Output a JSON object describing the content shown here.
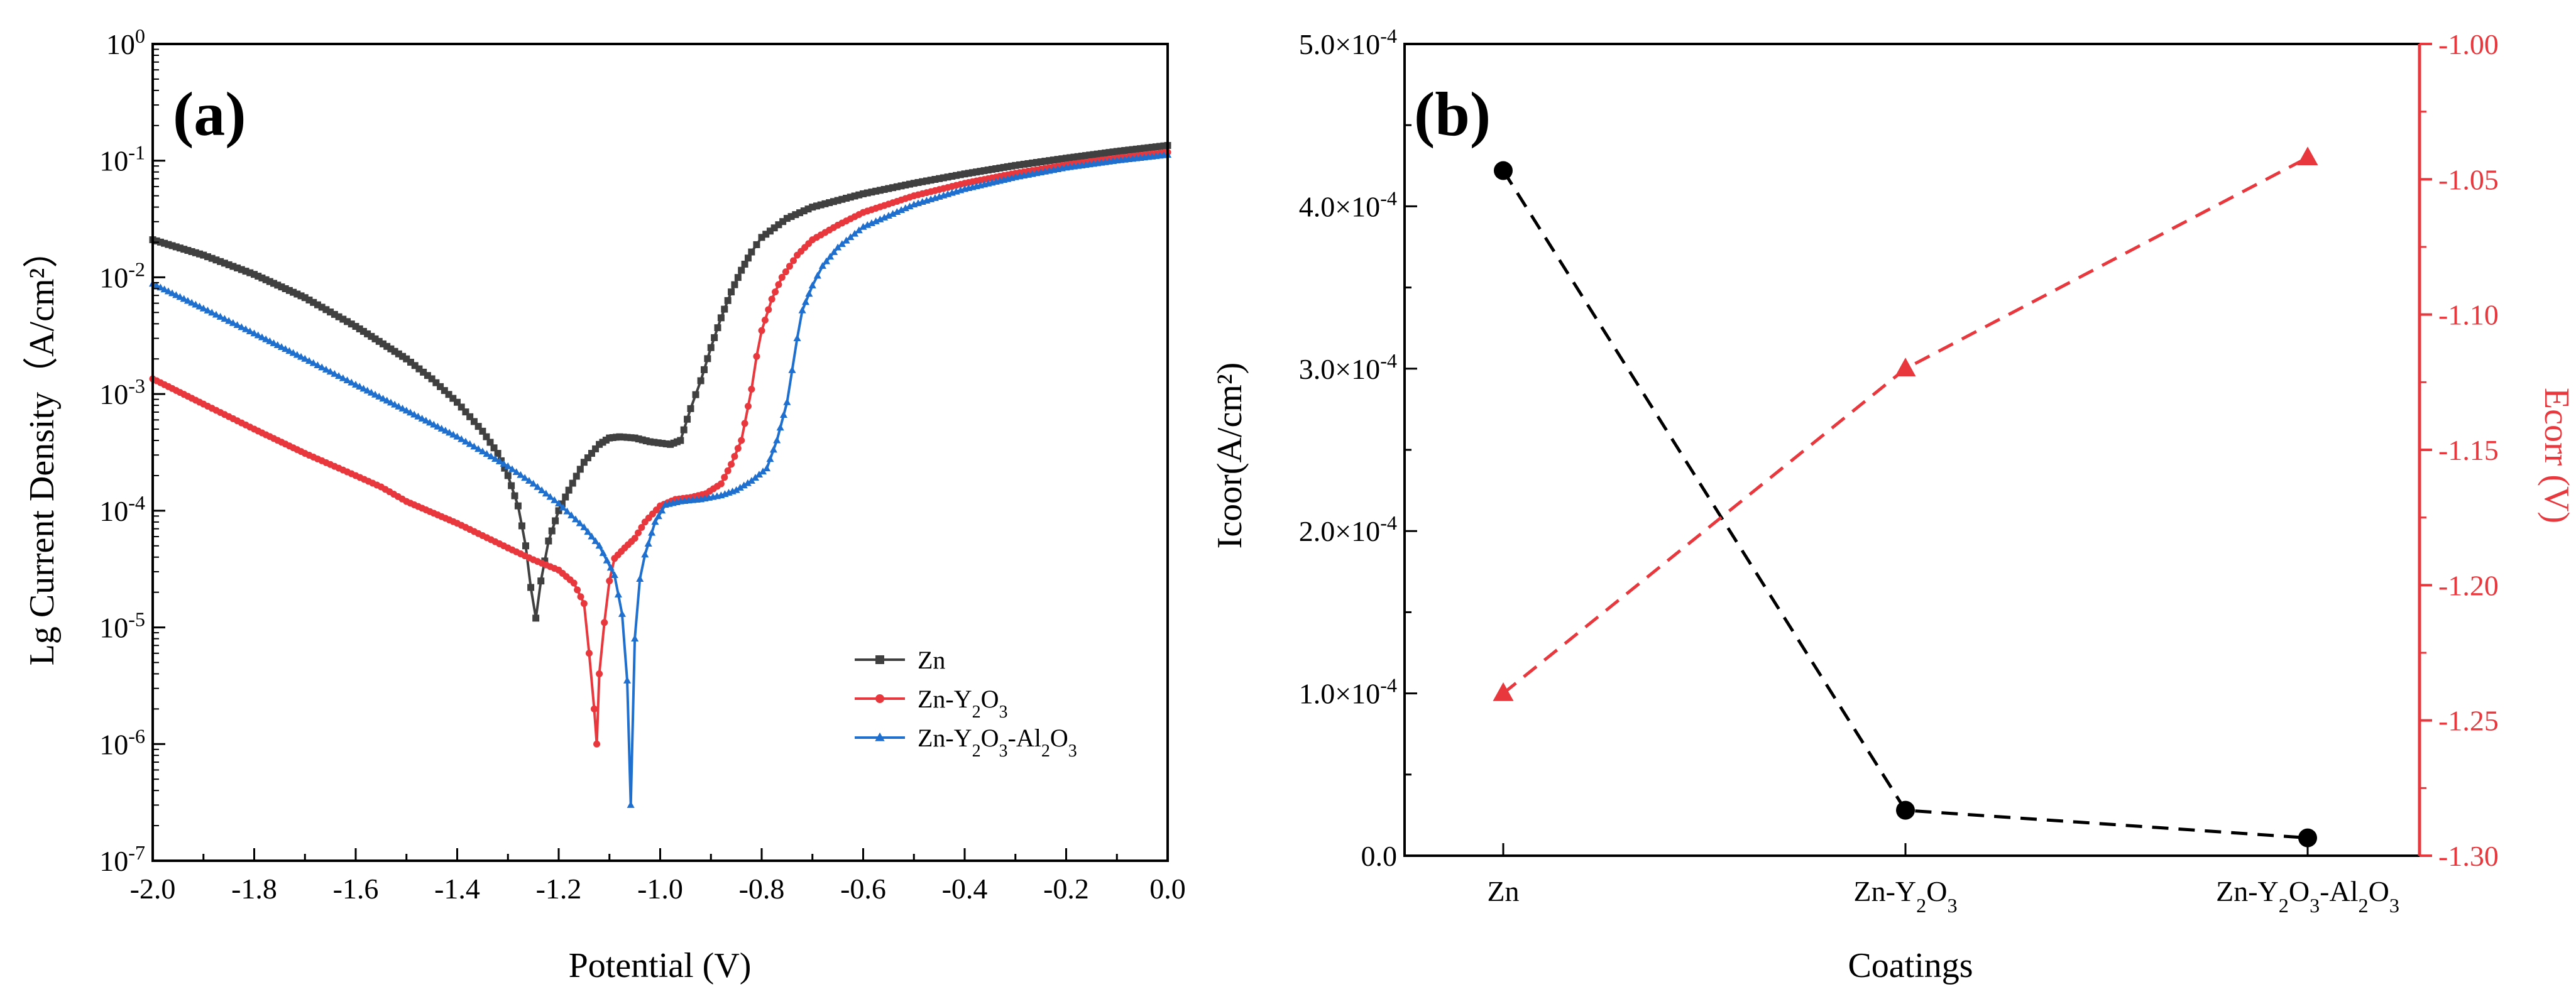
{
  "chart_data": [
    {
      "panel": "(a)",
      "type": "line",
      "xlabel": "Potential (V)",
      "ylabel": "Lg Current Density（A/cm²）",
      "yscale": "log",
      "xlim": [
        -2.0,
        0.0
      ],
      "ylim_exponents": [
        -7,
        0
      ],
      "x_ticks": [
        "-2.0",
        "-1.8",
        "-1.6",
        "-1.4",
        "-1.2",
        "-1.0",
        "-0.8",
        "-0.6",
        "-0.4",
        "-0.2",
        "0.0"
      ],
      "x_tick_values": [
        -2.0,
        -1.8,
        -1.6,
        -1.4,
        -1.2,
        -1.0,
        -0.8,
        -0.6,
        -0.4,
        -0.2,
        0.0
      ],
      "y_ticks": [
        "-7",
        "-6",
        "-5",
        "-4",
        "-3",
        "-2",
        "-1",
        "0"
      ],
      "y_tick_base": "10",
      "legend": {
        "position": "bottom-right"
      },
      "series": [
        {
          "name": "Zn",
          "label_parts": [
            [
              "Zn",
              "n"
            ]
          ],
          "color": "#404040",
          "marker": "square",
          "points": [
            [
              -2.0,
              0.021
            ],
            [
              -1.9,
              0.0155
            ],
            [
              -1.8,
              0.0106
            ],
            [
              -1.7,
              0.0067
            ],
            [
              -1.6,
              0.0038
            ],
            [
              -1.5,
              0.002
            ],
            [
              -1.45,
              0.00135
            ],
            [
              -1.4,
              0.00085
            ],
            [
              -1.35,
              0.00048
            ],
            [
              -1.32,
              0.00031
            ],
            [
              -1.3,
              0.0002
            ],
            [
              -1.28,
              0.00011
            ],
            [
              -1.265,
              5e-05
            ],
            [
              -1.255,
              2.2e-05
            ],
            [
              -1.245,
              1.2e-05
            ],
            [
              -1.235,
              2.5e-05
            ],
            [
              -1.22,
              5.5e-05
            ],
            [
              -1.2,
              0.0001
            ],
            [
              -1.18,
              0.00015
            ],
            [
              -1.15,
              0.00026
            ],
            [
              -1.12,
              0.00037
            ],
            [
              -1.1,
              0.00042
            ],
            [
              -1.08,
              0.00043
            ],
            [
              -1.05,
              0.00042
            ],
            [
              -1.02,
              0.00039
            ],
            [
              -0.98,
              0.00037
            ],
            [
              -0.96,
              0.0004
            ],
            [
              -0.94,
              0.00075
            ],
            [
              -0.92,
              0.0013
            ],
            [
              -0.9,
              0.0025
            ],
            [
              -0.88,
              0.0045
            ],
            [
              -0.86,
              0.0075
            ],
            [
              -0.84,
              0.0115
            ],
            [
              -0.82,
              0.0165
            ],
            [
              -0.8,
              0.022
            ],
            [
              -0.75,
              0.032
            ],
            [
              -0.7,
              0.04
            ],
            [
              -0.6,
              0.052
            ],
            [
              -0.5,
              0.064
            ],
            [
              -0.4,
              0.077
            ],
            [
              -0.3,
              0.091
            ],
            [
              -0.2,
              0.105
            ],
            [
              -0.1,
              0.12
            ],
            [
              0.0,
              0.135
            ]
          ]
        },
        {
          "name": "Zn-Y2O3",
          "label_parts": [
            [
              "Zn-Y",
              "n"
            ],
            [
              "2",
              "sub"
            ],
            [
              "O",
              "n"
            ],
            [
              "3",
              "sub"
            ]
          ],
          "color": "#e8383d",
          "marker": "circle",
          "points": [
            [
              -2.0,
              0.00135
            ],
            [
              -1.9,
              0.00082
            ],
            [
              -1.8,
              0.0005
            ],
            [
              -1.7,
              0.00031
            ],
            [
              -1.6,
              0.0002
            ],
            [
              -1.55,
              0.00016
            ],
            [
              -1.5,
              0.00012
            ],
            [
              -1.4,
              7.8e-05
            ],
            [
              -1.3,
              4.8e-05
            ],
            [
              -1.25,
              3.8e-05
            ],
            [
              -1.2,
              3.1e-05
            ],
            [
              -1.17,
              2.4e-05
            ],
            [
              -1.15,
              1.6e-05
            ],
            [
              -1.14,
              6e-06
            ],
            [
              -1.13,
              2e-06
            ],
            [
              -1.125,
              1e-06
            ],
            [
              -1.12,
              4e-06
            ],
            [
              -1.11,
              1.1e-05
            ],
            [
              -1.1,
              2.5e-05
            ],
            [
              -1.09,
              3.9e-05
            ],
            [
              -1.07,
              4.8e-05
            ],
            [
              -1.05,
              5.8e-05
            ],
            [
              -1.03,
              8e-05
            ],
            [
              -1.0,
              0.00011
            ],
            [
              -0.97,
              0.000125
            ],
            [
              -0.94,
              0.00013
            ],
            [
              -0.91,
              0.00014
            ],
            [
              -0.88,
              0.00017
            ],
            [
              -0.86,
              0.00025
            ],
            [
              -0.84,
              0.0004
            ],
            [
              -0.82,
              0.0011
            ],
            [
              -0.81,
              0.0021
            ],
            [
              -0.8,
              0.0035
            ],
            [
              -0.78,
              0.0065
            ],
            [
              -0.76,
              0.01
            ],
            [
              -0.73,
              0.0155
            ],
            [
              -0.7,
              0.021
            ],
            [
              -0.65,
              0.028
            ],
            [
              -0.6,
              0.036
            ],
            [
              -0.5,
              0.05
            ],
            [
              -0.4,
              0.064
            ],
            [
              -0.3,
              0.078
            ],
            [
              -0.2,
              0.092
            ],
            [
              -0.1,
              0.105
            ],
            [
              0.0,
              0.118
            ]
          ]
        },
        {
          "name": "Zn-Y2O3-Al2O3",
          "label_parts": [
            [
              "Zn-Y",
              "n"
            ],
            [
              "2",
              "sub"
            ],
            [
              "O",
              "n"
            ],
            [
              "3",
              "sub"
            ],
            [
              "-Al",
              "n"
            ],
            [
              "2",
              "sub"
            ],
            [
              "O",
              "n"
            ],
            [
              "3",
              "sub"
            ]
          ],
          "color": "#1f6fcf",
          "marker": "triangle",
          "points": [
            [
              -2.0,
              0.0088
            ],
            [
              -1.9,
              0.0054
            ],
            [
              -1.8,
              0.0033
            ],
            [
              -1.7,
              0.002
            ],
            [
              -1.6,
              0.0012
            ],
            [
              -1.5,
              0.00072
            ],
            [
              -1.4,
              0.00043
            ],
            [
              -1.3,
              0.00024
            ],
            [
              -1.25,
              0.00017
            ],
            [
              -1.2,
              0.000115
            ],
            [
              -1.15,
              7.2e-05
            ],
            [
              -1.12,
              5e-05
            ],
            [
              -1.09,
              2.8e-05
            ],
            [
              -1.075,
              1.3e-05
            ],
            [
              -1.065,
              3.5e-06
            ],
            [
              -1.058,
              3e-07
            ],
            [
              -1.05,
              8e-06
            ],
            [
              -1.04,
              2.6e-05
            ],
            [
              -1.03,
              4.2e-05
            ],
            [
              -1.01,
              8e-05
            ],
            [
              -0.99,
              0.000112
            ],
            [
              -0.96,
              0.00012
            ],
            [
              -0.92,
              0.000125
            ],
            [
              -0.88,
              0.000135
            ],
            [
              -0.85,
              0.00015
            ],
            [
              -0.82,
              0.00018
            ],
            [
              -0.79,
              0.00023
            ],
            [
              -0.77,
              0.0004
            ],
            [
              -0.75,
              0.00085
            ],
            [
              -0.74,
              0.0016
            ],
            [
              -0.73,
              0.003
            ],
            [
              -0.72,
              0.0052
            ],
            [
              -0.7,
              0.0085
            ],
            [
              -0.68,
              0.0125
            ],
            [
              -0.65,
              0.018
            ],
            [
              -0.6,
              0.027
            ],
            [
              -0.5,
              0.042
            ],
            [
              -0.4,
              0.057
            ],
            [
              -0.3,
              0.072
            ],
            [
              -0.2,
              0.087
            ],
            [
              -0.1,
              0.1
            ],
            [
              0.0,
              0.112
            ]
          ]
        }
      ]
    },
    {
      "panel": "(b)",
      "type": "line",
      "xlabel": "Coatings",
      "ylabel_left": "Icoor(A/cm²)",
      "ylabel_right": "Ecorr (V)",
      "categories": [
        "Zn",
        "Zn-Y2O3",
        "Zn-Y2O3-Al2O3"
      ],
      "category_label_parts": [
        [
          [
            "Zn",
            "n"
          ]
        ],
        [
          [
            "Zn-Y",
            "n"
          ],
          [
            "2",
            "sub"
          ],
          [
            "O",
            "n"
          ],
          [
            "3",
            "sub"
          ]
        ],
        [
          [
            "Zn-Y",
            "n"
          ],
          [
            "2",
            "sub"
          ],
          [
            "O",
            "n"
          ],
          [
            "3",
            "sub"
          ],
          [
            "-Al",
            "n"
          ],
          [
            "2",
            "sub"
          ],
          [
            "O",
            "n"
          ],
          [
            "3",
            "sub"
          ]
        ]
      ],
      "ylim_left": [
        0,
        0.0005
      ],
      "left_ticks": [
        {
          "value": 0.0,
          "mantissa": "0.0",
          "exp": ""
        },
        {
          "value": 0.0001,
          "mantissa": "1.0×10",
          "exp": "-4"
        },
        {
          "value": 0.0002,
          "mantissa": "2.0×10",
          "exp": "-4"
        },
        {
          "value": 0.0003,
          "mantissa": "3.0×10",
          "exp": "-4"
        },
        {
          "value": 0.0004,
          "mantissa": "4.0×10",
          "exp": "-4"
        },
        {
          "value": 0.0005,
          "mantissa": "5.0×10",
          "exp": "-4"
        }
      ],
      "ylim_right": [
        -1.3,
        -1.0
      ],
      "right_ticks": [
        "-1.30",
        "-1.25",
        "-1.20",
        "-1.15",
        "-1.10",
        "-1.05",
        "-1.00"
      ],
      "right_tick_values": [
        -1.3,
        -1.25,
        -1.2,
        -1.15,
        -1.1,
        -1.05,
        -1.0
      ],
      "series": [
        {
          "name": "Icorr",
          "axis": "left",
          "color": "#000000",
          "marker": "circle",
          "linestyle": "dashed",
          "values": [
            0.000422,
            2.8e-05,
            1.1e-05
          ]
        },
        {
          "name": "Ecorr",
          "axis": "right",
          "color": "#e8383d",
          "marker": "triangle",
          "linestyle": "dashed",
          "values": [
            -1.24,
            -1.12,
            -1.042
          ]
        }
      ]
    }
  ]
}
